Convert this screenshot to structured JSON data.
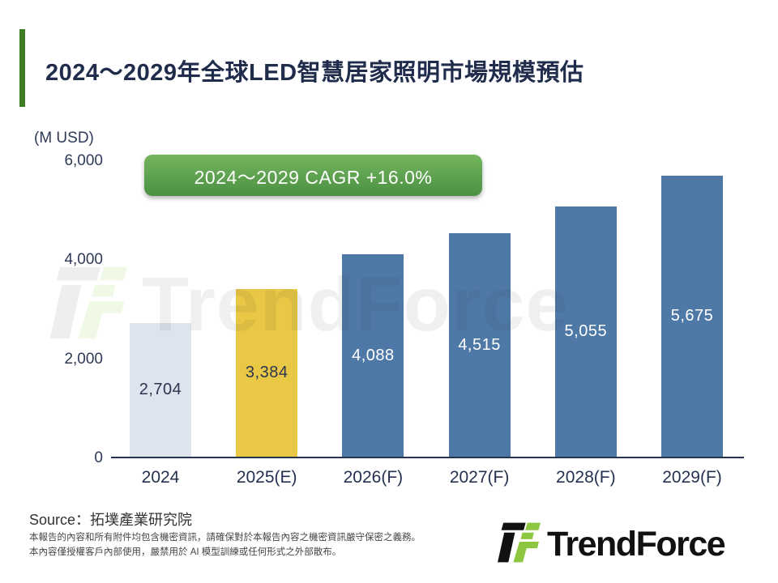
{
  "header": {
    "title": "2024～2029年全球LED智慧居家照明市場規模預估",
    "accent_color": "#3e7d22",
    "title_color": "#202c4c"
  },
  "chart_data": {
    "type": "bar",
    "title": "2024～2029年全球LED智慧居家照明市場規模預估",
    "unit_label": "(M USD)",
    "categories": [
      "2024",
      "2025(E)",
      "2026(F)",
      "2027(F)",
      "2028(F)",
      "2029(F)"
    ],
    "values": [
      2704,
      3384,
      4088,
      4515,
      5055,
      5675
    ],
    "value_labels": [
      "2,704",
      "3,384",
      "4,088",
      "4,515",
      "5,055",
      "5,675"
    ],
    "bar_colors": [
      "#dde4ed",
      "#e9c845",
      "#4e79a7",
      "#4e79a7",
      "#4e79a7",
      "#4e79a7"
    ],
    "value_label_colors": [
      "#2a3550",
      "#2a3550",
      "#ffffff",
      "#ffffff",
      "#ffffff",
      "#ffffff"
    ],
    "ylim": [
      0,
      6000
    ],
    "ytick_values": [
      0,
      2000,
      4000,
      6000
    ],
    "ytick_labels": [
      "0",
      "2,000",
      "4,000",
      "6,000"
    ],
    "grid": false,
    "annotation": "2024～2029 CAGR +16.0%"
  },
  "badge": {
    "bg_top": "#74b55e",
    "bg_bottom": "#4b9043",
    "text_color": "#ffffff"
  },
  "watermark": {
    "text": "TrendForce"
  },
  "footer": {
    "source": "Source：拓墣產業研究院",
    "disclaimer_line1": "本報告的內容和所有附件均包含機密資訊，請確保對於本報告內容之機密資訊嚴守保密之義務。",
    "disclaimer_line2": "本內容僅授權客戶內部使用，嚴禁用於 AI 模型訓練或任何形式之外部散布。",
    "logo_text": "TrendForce",
    "logo_green": "#8dc63f",
    "logo_black": "#111111"
  }
}
